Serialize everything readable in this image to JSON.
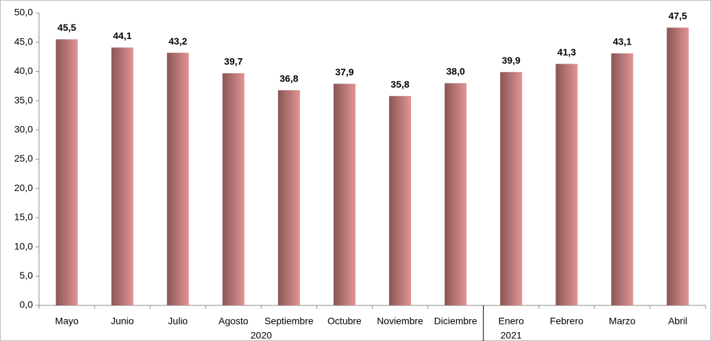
{
  "chart_data": {
    "type": "bar",
    "categories": [
      "Mayo",
      "Junio",
      "Julio",
      "Agosto",
      "Septiembre",
      "Octubre",
      "Noviembre",
      "Diciembre",
      "Enero",
      "Febrero",
      "Marzo",
      "Abril"
    ],
    "values": [
      45.5,
      44.1,
      43.2,
      39.7,
      36.8,
      37.9,
      35.8,
      38.0,
      39.9,
      41.3,
      43.1,
      47.5
    ],
    "value_labels": [
      "45,5",
      "44,1",
      "43,2",
      "39,7",
      "36,8",
      "37,9",
      "35,8",
      "38,0",
      "39,9",
      "41,3",
      "43,1",
      "47,5"
    ],
    "groups": [
      "2020",
      "2021"
    ],
    "color": [
      "#8a5656",
      "#e39494"
    ],
    "ylim": [
      0,
      50
    ],
    "yticks": [
      {
        "value": 0,
        "label": "0,0"
      },
      {
        "value": 5,
        "label": "5,0"
      },
      {
        "value": 10,
        "label": "10,0"
      },
      {
        "value": 15,
        "label": "15,0"
      },
      {
        "value": 20,
        "label": "20,0"
      },
      {
        "value": 25,
        "label": "25,0"
      },
      {
        "value": 30,
        "label": "30,0"
      },
      {
        "value": 35,
        "label": "35,0"
      },
      {
        "value": 40,
        "label": "40,0"
      },
      {
        "value": 45,
        "label": "45,0"
      },
      {
        "value": 50,
        "label": "50,0"
      }
    ]
  }
}
